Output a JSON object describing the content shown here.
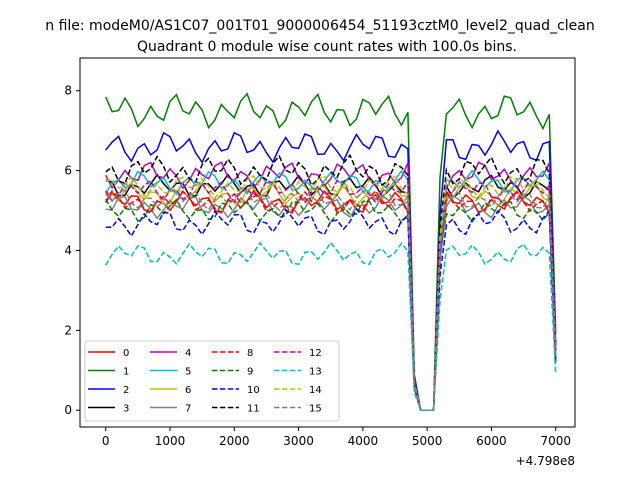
{
  "chart_data": {
    "type": "line",
    "suptitle": "n file: modeM0/AS1C07_001T01_9000006454_51193cztM0_level2_quad_clean",
    "title": "Quadrant 0 module wise count rates with 100.0s bins.",
    "xlabel": "",
    "ylabel": "",
    "x_offset_label": "+4.798e8",
    "xlim": [
      -400,
      7300
    ],
    "ylim": [
      -0.42,
      8.82
    ],
    "xticks": [
      0,
      1000,
      2000,
      3000,
      4000,
      5000,
      6000,
      7000
    ],
    "yticks": [
      0,
      2,
      4,
      6,
      8
    ],
    "grid": false,
    "legend_position": "lower-left",
    "x": [
      0,
      100,
      200,
      300,
      400,
      500,
      600,
      700,
      800,
      900,
      1000,
      1100,
      1200,
      1300,
      1400,
      1500,
      1600,
      1700,
      1800,
      1900,
      2000,
      2100,
      2200,
      2300,
      2400,
      2500,
      2600,
      2700,
      2800,
      2900,
      3000,
      3100,
      3200,
      3300,
      3400,
      3500,
      3600,
      3700,
      3800,
      3900,
      4000,
      4100,
      4200,
      4300,
      4400,
      4500,
      4600,
      4700,
      4800,
      4900,
      5000,
      5100,
      5200,
      5300,
      5400,
      5500,
      5600,
      5700,
      5800,
      5900,
      6000,
      6100,
      6200,
      6300,
      6400,
      6500,
      6600,
      6700,
      6800,
      6900,
      7000
    ],
    "series": [
      {
        "name": "0",
        "color": "#ff0000",
        "dash": "solid",
        "base": 5.2,
        "amp": 0.3
      },
      {
        "name": "1",
        "color": "#008000",
        "dash": "solid",
        "base": 7.5,
        "amp": 0.45
      },
      {
        "name": "2",
        "color": "#0000ff",
        "dash": "solid",
        "base": 6.6,
        "amp": 0.4
      },
      {
        "name": "3",
        "color": "#000000",
        "dash": "solid",
        "base": 5.6,
        "amp": 0.3
      },
      {
        "name": "4",
        "color": "#bf00bf",
        "dash": "solid",
        "base": 5.9,
        "amp": 0.35
      },
      {
        "name": "5",
        "color": "#00bfbf",
        "dash": "solid",
        "base": 5.7,
        "amp": 0.3
      },
      {
        "name": "6",
        "color": "#bfbf00",
        "dash": "solid",
        "base": 5.4,
        "amp": 0.3
      },
      {
        "name": "7",
        "color": "#808080",
        "dash": "solid",
        "base": 5.1,
        "amp": 0.3
      },
      {
        "name": "8",
        "color": "#ff0000",
        "dash": "dashed",
        "base": 5.2,
        "amp": 0.3
      },
      {
        "name": "9",
        "color": "#008000",
        "dash": "dashed",
        "base": 5.0,
        "amp": 0.3
      },
      {
        "name": "10",
        "color": "#0000ff",
        "dash": "dashed",
        "base": 4.7,
        "amp": 0.35
      },
      {
        "name": "11",
        "color": "#000000",
        "dash": "dashed",
        "base": 6.0,
        "amp": 0.4
      },
      {
        "name": "12",
        "color": "#bf00bf",
        "dash": "dashed",
        "base": 5.5,
        "amp": 0.3
      },
      {
        "name": "13",
        "color": "#00bfbf",
        "dash": "dashed",
        "base": 3.9,
        "amp": 0.3
      },
      {
        "name": "14",
        "color": "#bfbf00",
        "dash": "dashed",
        "base": 5.6,
        "amp": 0.3
      },
      {
        "name": "15",
        "color": "#808080",
        "dash": "dashed",
        "base": 5.3,
        "amp": 0.3
      }
    ]
  }
}
